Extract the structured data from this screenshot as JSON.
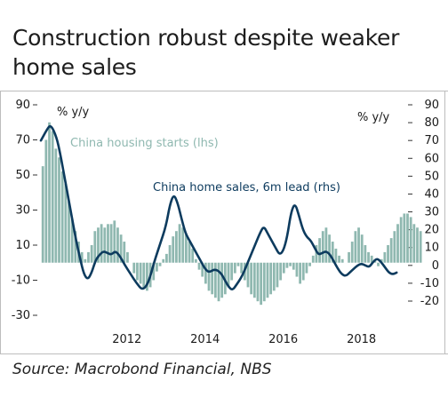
{
  "title": "Construction robust despite weaker home sales",
  "source": "Source: Macrobond Financial, NBS",
  "chart_data": {
    "type": "bar+line",
    "left_unit": "% y/y",
    "right_unit": "% y/y",
    "left_ticks": [
      90,
      70,
      50,
      30,
      10,
      -10,
      -30
    ],
    "right_ticks": [
      90,
      80,
      70,
      60,
      50,
      40,
      30,
      20,
      10,
      0,
      -10,
      -20
    ],
    "ylim_left": [
      -30,
      90
    ],
    "ylim_right": [
      -20,
      90
    ],
    "x_ticks": [
      "2012",
      "2014",
      "2016",
      "2018"
    ],
    "xlim": [
      2010.3,
      2019.6
    ],
    "bar_series": {
      "name": "China housing starts (lhs)",
      "color": "#8fb8b0",
      "x_start": 2010.35,
      "step": 0.0833,
      "values": [
        55,
        70,
        80,
        75,
        65,
        60,
        52,
        45,
        35,
        25,
        18,
        12,
        6,
        2,
        6,
        10,
        18,
        20,
        22,
        20,
        22,
        22,
        24,
        20,
        16,
        12,
        6,
        0,
        -6,
        -10,
        -12,
        -14,
        -16,
        -14,
        -10,
        -5,
        -2,
        2,
        5,
        10,
        15,
        18,
        22,
        20,
        16,
        12,
        8,
        2,
        -4,
        -8,
        -12,
        -16,
        -18,
        -20,
        -22,
        -20,
        -18,
        -14,
        -10,
        -6,
        -2,
        -6,
        -10,
        -14,
        -18,
        -20,
        -22,
        -24,
        -22,
        -20,
        -18,
        -16,
        -14,
        -10,
        -6,
        -3,
        -2,
        -4,
        -8,
        -12,
        -10,
        -6,
        -2,
        4,
        10,
        14,
        18,
        20,
        16,
        12,
        8,
        4,
        2,
        0,
        6,
        12,
        18,
        20,
        16,
        10,
        6,
        4,
        2,
        -2,
        2,
        6,
        10,
        14,
        18,
        22,
        26,
        28,
        28,
        26,
        22,
        20,
        18
      ]
    },
    "line_series": {
      "name": "China home sales, 6m lead (rhs)",
      "color": "#0d3b5e",
      "points": [
        [
          2010.3,
          70
        ],
        [
          2010.45,
          76
        ],
        [
          2010.55,
          79
        ],
        [
          2010.7,
          72
        ],
        [
          2010.8,
          62
        ],
        [
          2010.9,
          50
        ],
        [
          2011.0,
          38
        ],
        [
          2011.1,
          26
        ],
        [
          2011.2,
          14
        ],
        [
          2011.3,
          4
        ],
        [
          2011.4,
          -5
        ],
        [
          2011.5,
          -8
        ],
        [
          2011.6,
          -4
        ],
        [
          2011.7,
          3
        ],
        [
          2011.8,
          6
        ],
        [
          2011.9,
          8
        ],
        [
          2012.0,
          7
        ],
        [
          2012.1,
          6
        ],
        [
          2012.2,
          8
        ],
        [
          2012.3,
          6
        ],
        [
          2012.45,
          0
        ],
        [
          2012.6,
          -5
        ],
        [
          2012.75,
          -10
        ],
        [
          2012.9,
          -14
        ],
        [
          2013.05,
          -10
        ],
        [
          2013.2,
          2
        ],
        [
          2013.35,
          12
        ],
        [
          2013.5,
          22
        ],
        [
          2013.6,
          34
        ],
        [
          2013.7,
          40
        ],
        [
          2013.8,
          35
        ],
        [
          2013.9,
          26
        ],
        [
          2014.0,
          18
        ],
        [
          2014.1,
          14
        ],
        [
          2014.2,
          10
        ],
        [
          2014.3,
          6
        ],
        [
          2014.4,
          2
        ],
        [
          2014.5,
          -2
        ],
        [
          2014.6,
          -4
        ],
        [
          2014.75,
          -2
        ],
        [
          2014.9,
          -4
        ],
        [
          2015.0,
          -8
        ],
        [
          2015.1,
          -12
        ],
        [
          2015.2,
          -14
        ],
        [
          2015.3,
          -11
        ],
        [
          2015.45,
          -6
        ],
        [
          2015.6,
          2
        ],
        [
          2015.75,
          10
        ],
        [
          2015.9,
          18
        ],
        [
          2016.0,
          22
        ],
        [
          2016.1,
          18
        ],
        [
          2016.2,
          14
        ],
        [
          2016.3,
          10
        ],
        [
          2016.4,
          6
        ],
        [
          2016.5,
          8
        ],
        [
          2016.6,
          16
        ],
        [
          2016.7,
          30
        ],
        [
          2016.8,
          35
        ],
        [
          2016.9,
          28
        ],
        [
          2017.0,
          20
        ],
        [
          2017.1,
          16
        ],
        [
          2017.2,
          14
        ],
        [
          2017.3,
          10
        ],
        [
          2017.4,
          6
        ],
        [
          2017.5,
          7
        ],
        [
          2017.6,
          8
        ],
        [
          2017.7,
          6
        ],
        [
          2017.8,
          2
        ],
        [
          2017.9,
          -2
        ],
        [
          2018.0,
          -5
        ],
        [
          2018.1,
          -6
        ],
        [
          2018.2,
          -4
        ],
        [
          2018.3,
          -2
        ],
        [
          2018.4,
          0
        ],
        [
          2018.5,
          1
        ],
        [
          2018.6,
          0
        ],
        [
          2018.7,
          -1
        ],
        [
          2018.8,
          2
        ],
        [
          2018.9,
          4
        ],
        [
          2019.0,
          2
        ],
        [
          2019.1,
          -1
        ],
        [
          2019.2,
          -4
        ],
        [
          2019.3,
          -5
        ],
        [
          2019.4,
          -4
        ]
      ]
    },
    "annotations": [
      "China housing starts (lhs)",
      "China home sales, 6m lead (rhs)"
    ]
  }
}
